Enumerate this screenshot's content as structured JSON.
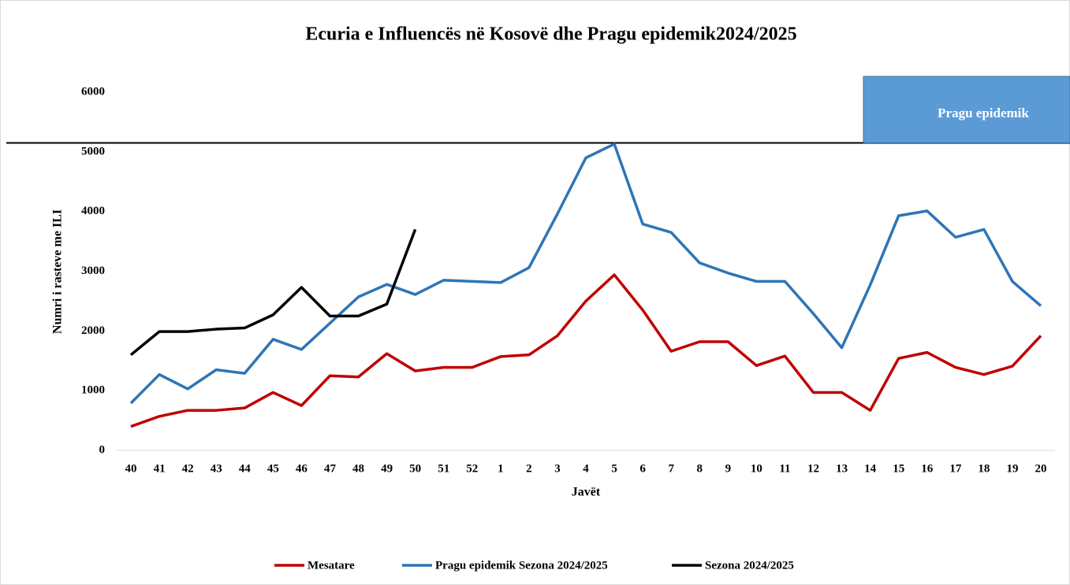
{
  "chart_data": {
    "type": "line",
    "title": "Ecuria e Influencës në Kosovë dhe Pragu epidemik2024/2025",
    "x_label": "Javët",
    "y_label": "Numri i rasteve me ILI",
    "categories": [
      "40",
      "41",
      "42",
      "43",
      "44",
      "45",
      "46",
      "47",
      "48",
      "49",
      "50",
      "51",
      "52",
      "1",
      "2",
      "3",
      "4",
      "5",
      "6",
      "7",
      "8",
      "9",
      "10",
      "11",
      "12",
      "13",
      "14",
      "15",
      "16",
      "17",
      "18",
      "19",
      "20"
    ],
    "series": [
      {
        "name": "Mesatare",
        "color": "#c00000",
        "values": [
          400,
          570,
          670,
          670,
          710,
          970,
          750,
          1250,
          1230,
          1620,
          1330,
          1390,
          1390,
          1570,
          1600,
          1920,
          2500,
          2940,
          2350,
          1660,
          1820,
          1820,
          1420,
          1580,
          970,
          970,
          670,
          1540,
          1640,
          1390,
          1270,
          1410,
          1920
        ]
      },
      {
        "name": "Pragu epidemik Sezona 2024/2025",
        "color": "#2e75b6",
        "values": [
          790,
          1270,
          1030,
          1350,
          1290,
          1860,
          1690,
          2130,
          2570,
          2780,
          2610,
          2850,
          2830,
          2810,
          3060,
          3960,
          4900,
          5130,
          3790,
          3650,
          3140,
          2970,
          2830,
          2830,
          2290,
          1720,
          2770,
          3930,
          4010,
          3570,
          3700,
          2830,
          2420
        ]
      },
      {
        "name": "Sezona 2024/2025",
        "color": "#000000",
        "values": [
          1600,
          1990,
          1990,
          2030,
          2050,
          2270,
          2730,
          2250,
          2250,
          2450,
          3700,
          null,
          null,
          null,
          null,
          null,
          null,
          null,
          null,
          null,
          null,
          null,
          null,
          null,
          null,
          null,
          null,
          null,
          null,
          null,
          null,
          null,
          null
        ]
      }
    ],
    "threshold": {
      "value": 5150,
      "label": "Pragu epidemik",
      "color": "#5b9bd5"
    },
    "ylim": [
      0,
      6000
    ],
    "yticks": [
      0,
      1000,
      2000,
      3000,
      4000,
      5000,
      6000
    ],
    "grid": false,
    "legend": "bottom"
  }
}
